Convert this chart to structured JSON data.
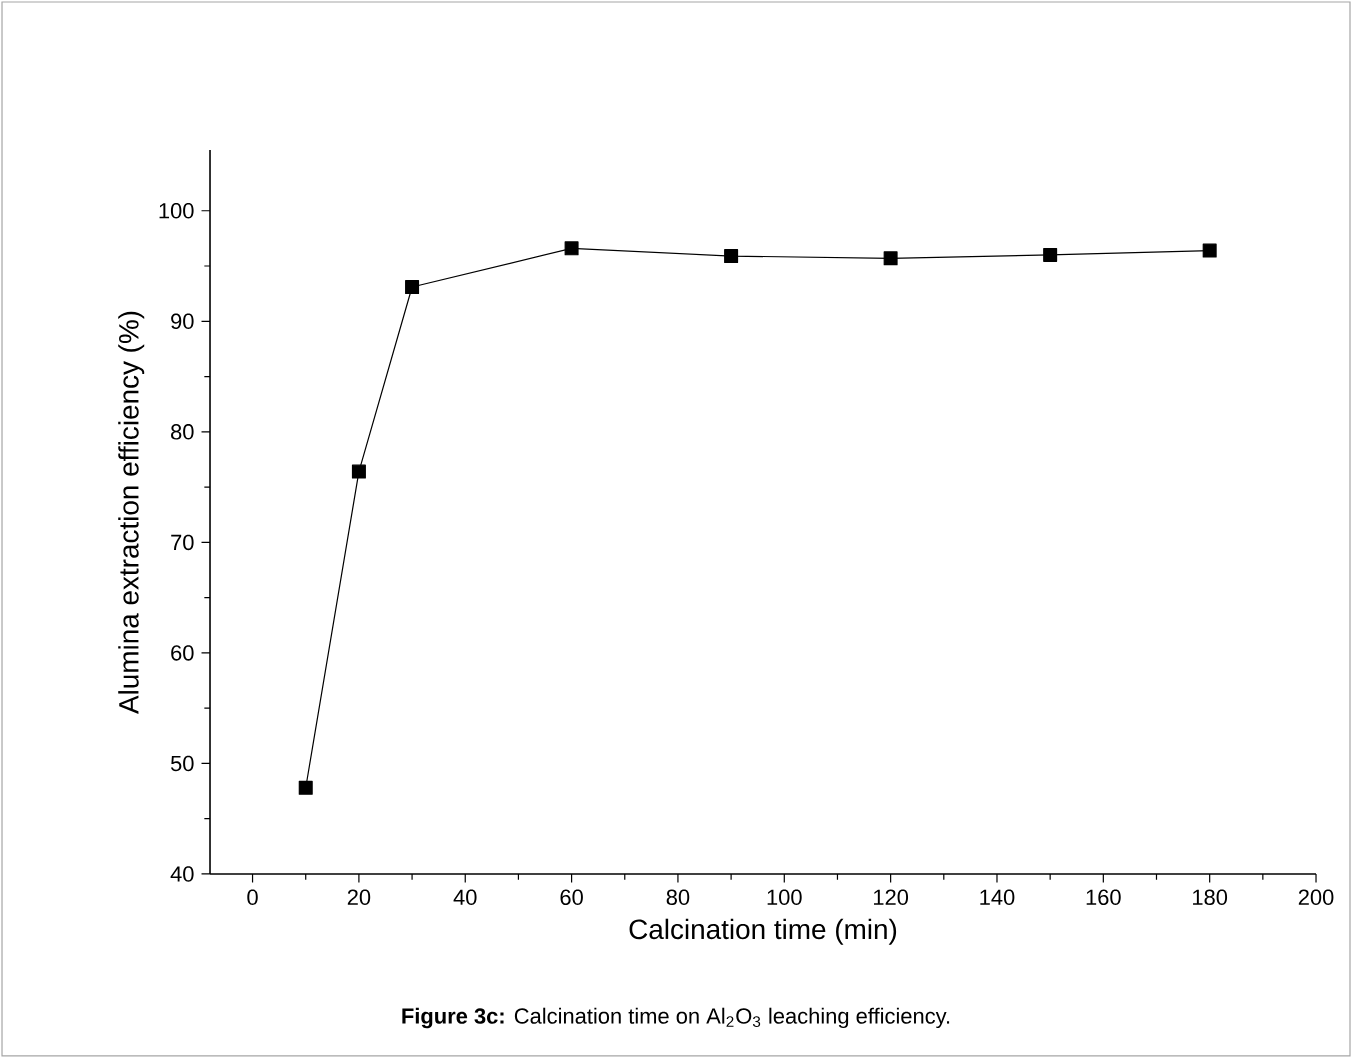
{
  "chart_data": {
    "type": "line",
    "xlabel": "Calcination time (min)",
    "ylabel": "Alumina extraction efficiency (%)",
    "x": [
      10,
      20,
      30,
      60,
      90,
      120,
      150,
      180
    ],
    "series": [
      {
        "color": "#000000",
        "values": [
          47.8,
          76.4,
          93.1,
          96.6,
          95.9,
          95.7,
          96.0,
          96.4
        ]
      }
    ],
    "xlim": [
      -8,
      200
    ],
    "ylim": [
      40,
      105.5
    ],
    "xticks": [
      0,
      20,
      40,
      60,
      80,
      100,
      120,
      140,
      160,
      180,
      200
    ],
    "yticks": [
      40,
      50,
      60,
      70,
      80,
      90,
      100
    ],
    "marker": "square",
    "line_style": "solid",
    "annotations": [
      "**Figure 3c:** Calcination time on Al$_{2}$O$_{3}$ leaching efficiency."
    ]
  }
}
